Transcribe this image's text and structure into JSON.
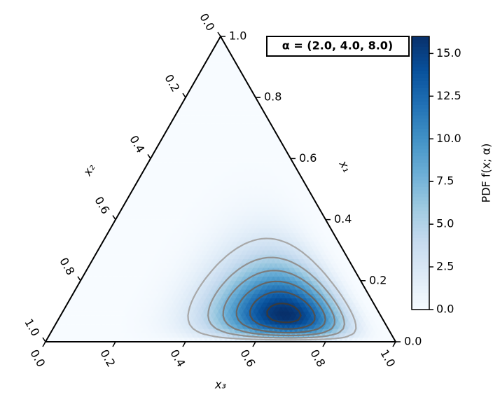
{
  "chart_data": {
    "type": "ternary-density",
    "alpha": {
      "values": [
        2,
        4,
        8
      ],
      "label": "α = (2.0, 4.0, 8.0)"
    },
    "colormap": [
      "#f7fbff",
      "#deebf7",
      "#c6dbef",
      "#9ecae1",
      "#6baed6",
      "#4292c6",
      "#2171b5",
      "#08519c",
      "#08306b"
    ],
    "contours": true,
    "x1_label": "x₁",
    "x2_label": "x₂",
    "x3_label": "x₃",
    "x1ticks": [
      {
        "value": 0,
        "label": "0.0"
      },
      {
        "value": 0.2,
        "label": "0.2"
      },
      {
        "value": 0.4,
        "label": "0.4"
      },
      {
        "value": 0.6,
        "label": "0.6"
      },
      {
        "value": 0.8,
        "label": "0.8"
      },
      {
        "value": 1,
        "label": "1.0"
      }
    ],
    "x2ticks": [
      {
        "value": 0,
        "label": "0.0"
      },
      {
        "value": 0.2,
        "label": "0.2"
      },
      {
        "value": 0.4,
        "label": "0.4"
      },
      {
        "value": 0.6,
        "label": "0.6"
      },
      {
        "value": 0.8,
        "label": "0.8"
      },
      {
        "value": 1,
        "label": "1.0"
      }
    ],
    "x3ticks": [
      {
        "value": 0,
        "label": "0.0"
      },
      {
        "value": 0.2,
        "label": "0.2"
      },
      {
        "value": 0.4,
        "label": "0.4"
      },
      {
        "value": 0.6,
        "label": "0.6"
      },
      {
        "value": 0.8,
        "label": "0.8"
      },
      {
        "value": 1,
        "label": "1.0"
      }
    ],
    "colorbar_label": "PDF f(x; α)",
    "clim": [
      0,
      16
    ],
    "cticks": [
      {
        "value": 0,
        "label": "0.0"
      },
      {
        "value": 2.5,
        "label": "2.5"
      },
      {
        "value": 5,
        "label": "5.0"
      },
      {
        "value": 7.5,
        "label": "7.5"
      },
      {
        "value": 10,
        "label": "10.0"
      },
      {
        "value": 12.5,
        "label": "12.5"
      },
      {
        "value": 15,
        "label": "15.0"
      }
    ]
  }
}
